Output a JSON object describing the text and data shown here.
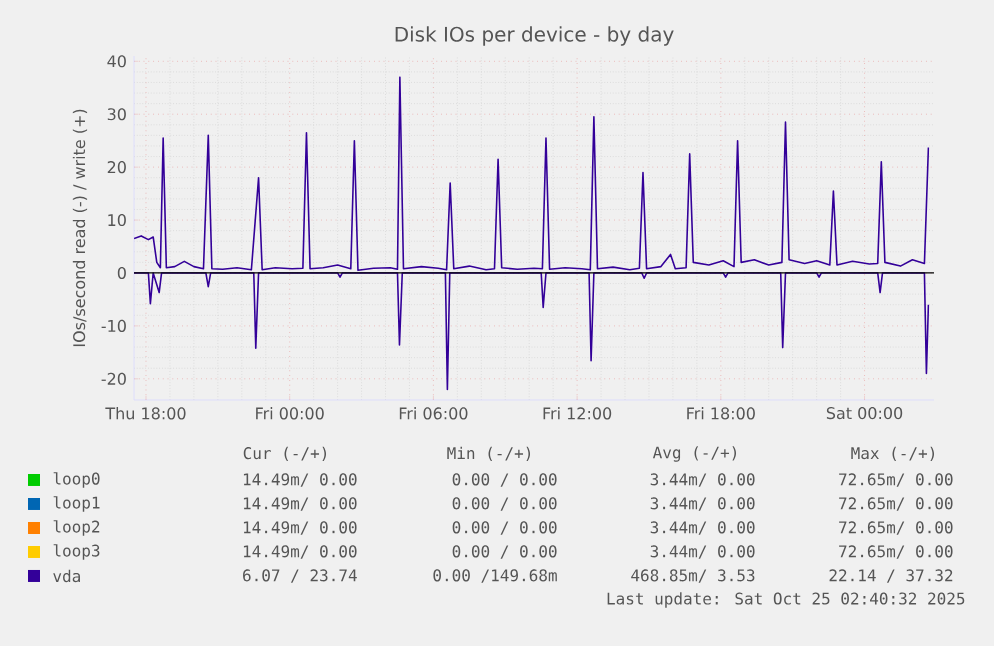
{
  "chart_data": {
    "type": "line",
    "title": "Disk IOs per device - by day",
    "ylabel": "IOs/second read (-) / write (+)",
    "xlim": [
      "2025-10-23T17:30",
      "2025-10-25T02:54"
    ],
    "ylim": [
      -24,
      41
    ],
    "xticks": [
      {
        "value": "2025-10-23T18:00",
        "label": "Thu 18:00"
      },
      {
        "value": "2025-10-24T00:00",
        "label": "Fri 00:00"
      },
      {
        "value": "2025-10-24T06:00",
        "label": "Fri 06:00"
      },
      {
        "value": "2025-10-24T12:00",
        "label": "Fri 12:00"
      },
      {
        "value": "2025-10-24T18:00",
        "label": "Fri 18:00"
      },
      {
        "value": "2025-10-25T00:00",
        "label": "Sat 00:00"
      }
    ],
    "yticks": [
      -20,
      -10,
      0,
      10,
      20,
      30,
      40
    ],
    "grid": true,
    "legend": "bottom",
    "ref_lines": [
      {
        "axis": "y",
        "value": 0,
        "color": "#000000"
      }
    ],
    "series": [
      {
        "name": "loop0",
        "color": "#00cc00"
      },
      {
        "name": "loop1",
        "color": "#0066b3"
      },
      {
        "name": "loop2",
        "color": "#ff8000"
      },
      {
        "name": "loop3",
        "color": "#ffcc00"
      },
      {
        "name": "vda",
        "color": "#330099",
        "x": [
          "2025-10-23T17:30",
          "2025-10-23T17:48",
          "2025-10-23T18:06",
          "2025-10-23T18:18",
          "2025-10-23T18:27",
          "2025-10-23T18:36",
          "2025-10-23T18:43",
          "2025-10-23T18:51",
          "2025-10-23T19:12",
          "2025-10-23T19:36",
          "2025-10-23T20:00",
          "2025-10-23T20:24",
          "2025-10-23T20:36",
          "2025-10-23T20:45",
          "2025-10-23T21:12",
          "2025-10-23T21:48",
          "2025-10-23T22:24",
          "2025-10-23T22:42",
          "2025-10-23T22:51",
          "2025-10-23T23:24",
          "2025-10-24T00:06",
          "2025-10-24T00:33",
          "2025-10-24T00:42",
          "2025-10-24T00:51",
          "2025-10-24T01:24",
          "2025-10-24T02:00",
          "2025-10-24T02:33",
          "2025-10-24T02:42",
          "2025-10-24T02:51",
          "2025-10-24T03:30",
          "2025-10-24T04:12",
          "2025-10-24T04:30",
          "2025-10-24T04:36",
          "2025-10-24T04:45",
          "2025-10-24T05:30",
          "2025-10-24T06:12",
          "2025-10-24T06:33",
          "2025-10-24T06:42",
          "2025-10-24T06:51",
          "2025-10-24T07:30",
          "2025-10-24T08:12",
          "2025-10-24T08:33",
          "2025-10-24T08:42",
          "2025-10-24T08:51",
          "2025-10-24T09:30",
          "2025-10-24T10:12",
          "2025-10-24T10:33",
          "2025-10-24T10:42",
          "2025-10-24T10:51",
          "2025-10-24T11:30",
          "2025-10-24T12:12",
          "2025-10-24T12:33",
          "2025-10-24T12:42",
          "2025-10-24T12:51",
          "2025-10-24T13:30",
          "2025-10-24T14:12",
          "2025-10-24T14:36",
          "2025-10-24T14:45",
          "2025-10-24T14:54",
          "2025-10-24T15:30",
          "2025-10-24T15:54",
          "2025-10-24T16:06",
          "2025-10-24T16:33",
          "2025-10-24T16:42",
          "2025-10-24T16:51",
          "2025-10-24T17:30",
          "2025-10-24T18:06",
          "2025-10-24T18:33",
          "2025-10-24T18:42",
          "2025-10-24T18:51",
          "2025-10-24T19:24",
          "2025-10-24T20:00",
          "2025-10-24T20:33",
          "2025-10-24T20:42",
          "2025-10-24T20:51",
          "2025-10-24T21:30",
          "2025-10-24T22:00",
          "2025-10-24T22:33",
          "2025-10-24T22:42",
          "2025-10-24T22:51",
          "2025-10-24T23:30",
          "2025-10-25T00:12",
          "2025-10-25T00:33",
          "2025-10-25T00:42",
          "2025-10-25T00:51",
          "2025-10-25T01:30",
          "2025-10-25T02:00",
          "2025-10-25T02:30",
          "2025-10-25T02:40"
        ],
        "values": [
          6.5,
          7,
          6.3,
          6.8,
          2,
          1,
          25.5,
          1,
          1.2,
          2.2,
          1.2,
          0.8,
          26,
          0.8,
          0.7,
          1,
          0.6,
          18,
          0.6,
          1,
          0.8,
          0.9,
          26.5,
          0.8,
          1,
          1.5,
          0.8,
          25,
          0.5,
          0.9,
          1,
          0.7,
          37,
          0.8,
          1.2,
          0.9,
          0.6,
          17,
          0.8,
          1.3,
          0.6,
          0.8,
          21.5,
          1,
          0.7,
          0.9,
          0.8,
          25.5,
          0.7,
          1,
          0.8,
          0.6,
          29.5,
          0.8,
          1.1,
          0.6,
          0.9,
          19,
          0.8,
          1.2,
          3.5,
          0.8,
          1,
          22.5,
          2,
          1.5,
          2.3,
          1.2,
          25,
          2,
          2.5,
          1.5,
          2,
          28.5,
          2.5,
          1.8,
          2.3,
          1.5,
          15.5,
          1.5,
          2.2,
          1.7,
          1.8,
          21,
          2,
          1.3,
          2.5,
          1.8,
          23.7
        ]
      },
      {
        "color": "#330099",
        "x": [
          "2025-10-23T17:30",
          "2025-10-23T18:06",
          "2025-10-23T18:11",
          "2025-10-23T18:18",
          "2025-10-23T18:33",
          "2025-10-23T18:39",
          "2025-10-23T20:30",
          "2025-10-23T20:36",
          "2025-10-23T20:42",
          "2025-10-23T22:30",
          "2025-10-23T22:35",
          "2025-10-23T22:42",
          "2025-10-24T02:00",
          "2025-10-24T02:06",
          "2025-10-24T02:12",
          "2025-10-24T04:30",
          "2025-10-24T04:35",
          "2025-10-24T04:42",
          "2025-10-24T06:30",
          "2025-10-24T06:35",
          "2025-10-24T06:41",
          "2025-10-24T10:30",
          "2025-10-24T10:35",
          "2025-10-24T10:42",
          "2025-10-24T12:30",
          "2025-10-24T12:35",
          "2025-10-24T12:42",
          "2025-10-24T14:42",
          "2025-10-24T14:48",
          "2025-10-24T14:54",
          "2025-10-24T18:06",
          "2025-10-24T18:12",
          "2025-10-24T18:18",
          "2025-10-24T20:30",
          "2025-10-24T20:35",
          "2025-10-24T20:42",
          "2025-10-24T22:00",
          "2025-10-24T22:06",
          "2025-10-24T22:12",
          "2025-10-25T00:33",
          "2025-10-25T00:39",
          "2025-10-25T00:45",
          "2025-10-25T02:30",
          "2025-10-25T02:35",
          "2025-10-25T02:40"
        ],
        "values": [
          0,
          0,
          -5.8,
          0,
          -3.7,
          0,
          0,
          -2.6,
          0,
          0,
          -14.2,
          0,
          0,
          -0.8,
          0,
          0,
          -13.6,
          0,
          0,
          -22,
          0,
          0,
          -6.5,
          0,
          0,
          -16.6,
          0,
          0,
          -1,
          0,
          0,
          -0.8,
          0,
          0,
          -14.1,
          0,
          0,
          -0.8,
          0,
          0,
          -3.7,
          0,
          0,
          -19,
          -6
        ]
      }
    ],
    "annotations": [
      "Cur (-/+)",
      "Min (-/+)",
      "Avg (-/+)",
      "Max (-/+)",
      "14.49m/ 0.00",
      "0.00 / 0.00",
      "3.44m/ 0.00",
      "72.65m/ 0.00",
      "14.49m/ 0.00",
      "0.00 / 0.00",
      "3.44m/ 0.00",
      "72.65m/ 0.00",
      "14.49m/ 0.00",
      "0.00 / 0.00",
      "3.44m/ 0.00",
      "72.65m/ 0.00",
      "14.49m/ 0.00",
      "0.00 / 0.00",
      "3.44m/ 0.00",
      "72.65m/ 0.00",
      "6.07 / 23.74",
      "0.00 /149.68m",
      "468.85m/ 3.53",
      "22.14 / 37.32",
      "Last update: Sat Oct 25 02:40:32 2025"
    ]
  }
}
